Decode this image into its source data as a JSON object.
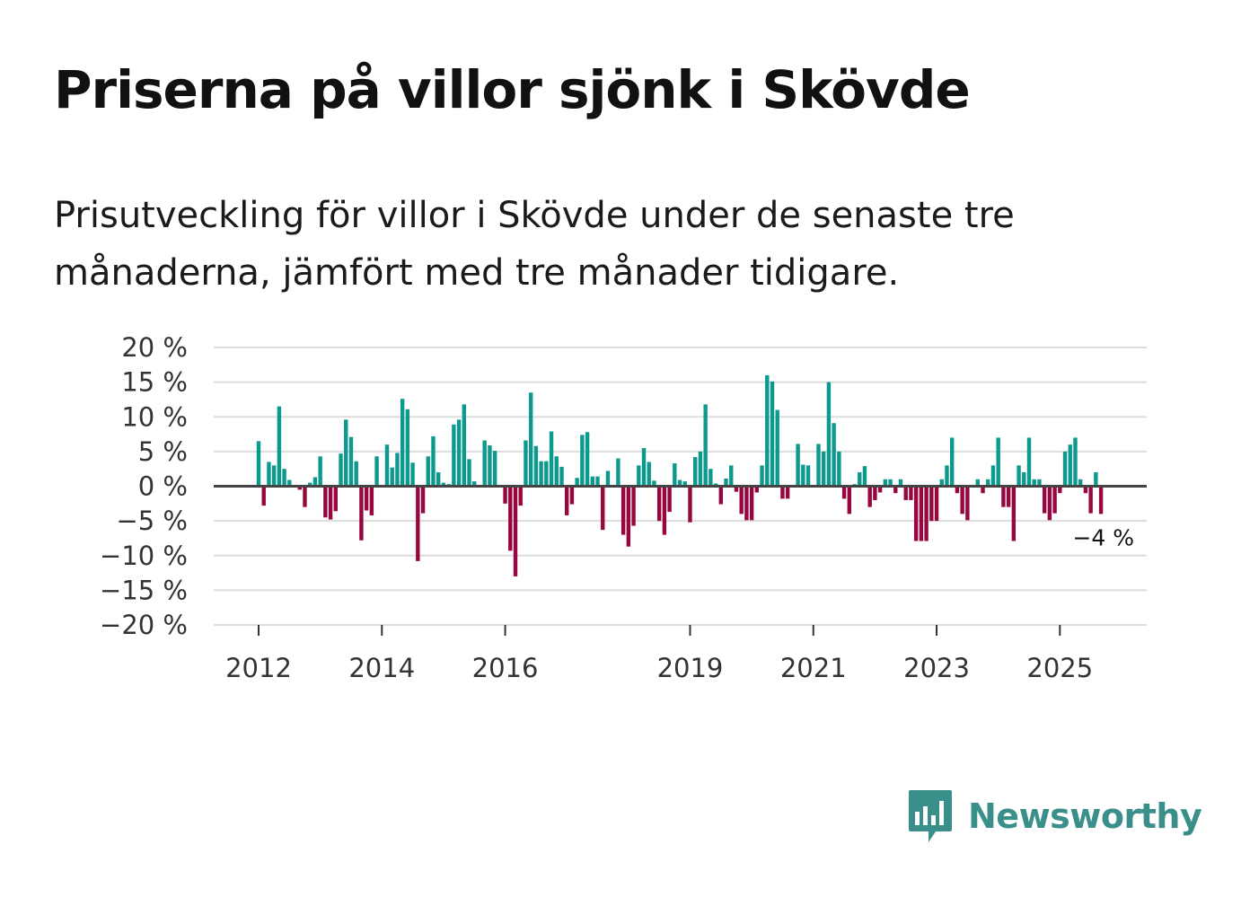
{
  "title": "Priserna på villor sjönk i Skövde",
  "subtitle": "Prisutveckling för villor i Skövde under de senaste tre månaderna, jämfört med tre månader tidigare.",
  "brand": {
    "name": "Newsworthy",
    "icon": "newsworthy-bar-chart-icon"
  },
  "colors": {
    "positive": "#0d9a8e",
    "negative": "#98063f",
    "grid": "#dddddd",
    "zero": "#444444",
    "brand": "#3a8f8a"
  },
  "chart_data": {
    "type": "bar",
    "title": "Priserna på villor sjönk i Skövde",
    "xlabel": "",
    "ylabel": "",
    "ylim": [
      -20,
      20
    ],
    "y_ticks": [
      20,
      15,
      10,
      5,
      0,
      -5,
      -10,
      -15,
      -20
    ],
    "y_tick_labels": [
      "20 %",
      "15 %",
      "10 %",
      "5 %",
      "0 %",
      "−5 %",
      "−10 %",
      "−15 %",
      "−20 %"
    ],
    "x_ticks": [
      {
        "label": "2012",
        "index": 0
      },
      {
        "label": "2014",
        "index": 24
      },
      {
        "label": "2016",
        "index": 48
      },
      {
        "label": "2019",
        "index": 84
      },
      {
        "label": "2021",
        "index": 108
      },
      {
        "label": "2023",
        "index": 132
      },
      {
        "label": "2025",
        "index": 156
      }
    ],
    "grid": true,
    "series_start": "2012-01",
    "frequency": "monthly",
    "values": [
      6.5,
      -2.8,
      3.5,
      3.0,
      11.5,
      2.5,
      0.9,
      0.2,
      -0.5,
      -3.0,
      0.5,
      1.3,
      4.3,
      -4.5,
      -4.8,
      -3.6,
      4.7,
      9.6,
      7.1,
      3.6,
      -7.8,
      -3.5,
      -4.2,
      4.3,
      0.2,
      6.0,
      2.7,
      4.8,
      12.6,
      11.1,
      3.4,
      -10.8,
      -3.9,
      4.3,
      7.2,
      2.0,
      0.5,
      0.3,
      8.9,
      9.6,
      11.8,
      3.9,
      0.7,
      0.2,
      6.6,
      5.9,
      5.1,
      0.2,
      -2.5,
      -9.3,
      -13.0,
      -2.8,
      6.6,
      13.5,
      5.8,
      3.6,
      3.6,
      7.9,
      4.3,
      2.8,
      -4.2,
      -2.6,
      1.2,
      7.4,
      7.8,
      1.4,
      1.4,
      -6.3,
      2.2,
      0.2,
      4.0,
      -7.0,
      -8.7,
      -5.7,
      3.0,
      5.5,
      3.5,
      0.8,
      -5.0,
      -7.0,
      -3.7,
      3.3,
      0.9,
      0.7,
      -5.2,
      4.2,
      5.0,
      11.8,
      2.5,
      0.4,
      -2.6,
      1.1,
      3.0,
      -0.8,
      -4.0,
      -4.9,
      -4.9,
      -0.9,
      3.0,
      16.0,
      15.1,
      11.0,
      -1.8,
      -1.8,
      0.2,
      6.1,
      3.1,
      3.0,
      0.2,
      6.1,
      5.0,
      15.0,
      9.1,
      5.0,
      -1.8,
      -4.0,
      0.3,
      2.0,
      2.9,
      -3.0,
      -2.0,
      -0.9,
      1.0,
      1.0,
      -1.0,
      1.0,
      -2.0,
      -2.0,
      -7.9,
      -7.9,
      -7.9,
      -5.0,
      -5.0,
      1.0,
      3.0,
      7.0,
      -1.0,
      -4.0,
      -4.9,
      0.2,
      1.0,
      -1.0,
      1.0,
      3.0,
      7.0,
      -3.0,
      -3.0,
      -7.9,
      3.0,
      2.0,
      7.0,
      1.0,
      1.0,
      -3.9,
      -4.9,
      -3.9,
      -1.0,
      5.0,
      6.0,
      7.0,
      1.0,
      -1.0,
      -3.9,
      2.0,
      -4.0
    ],
    "annotations": [
      {
        "text": "−4 %",
        "value": -4,
        "target": "last-bar"
      }
    ]
  }
}
